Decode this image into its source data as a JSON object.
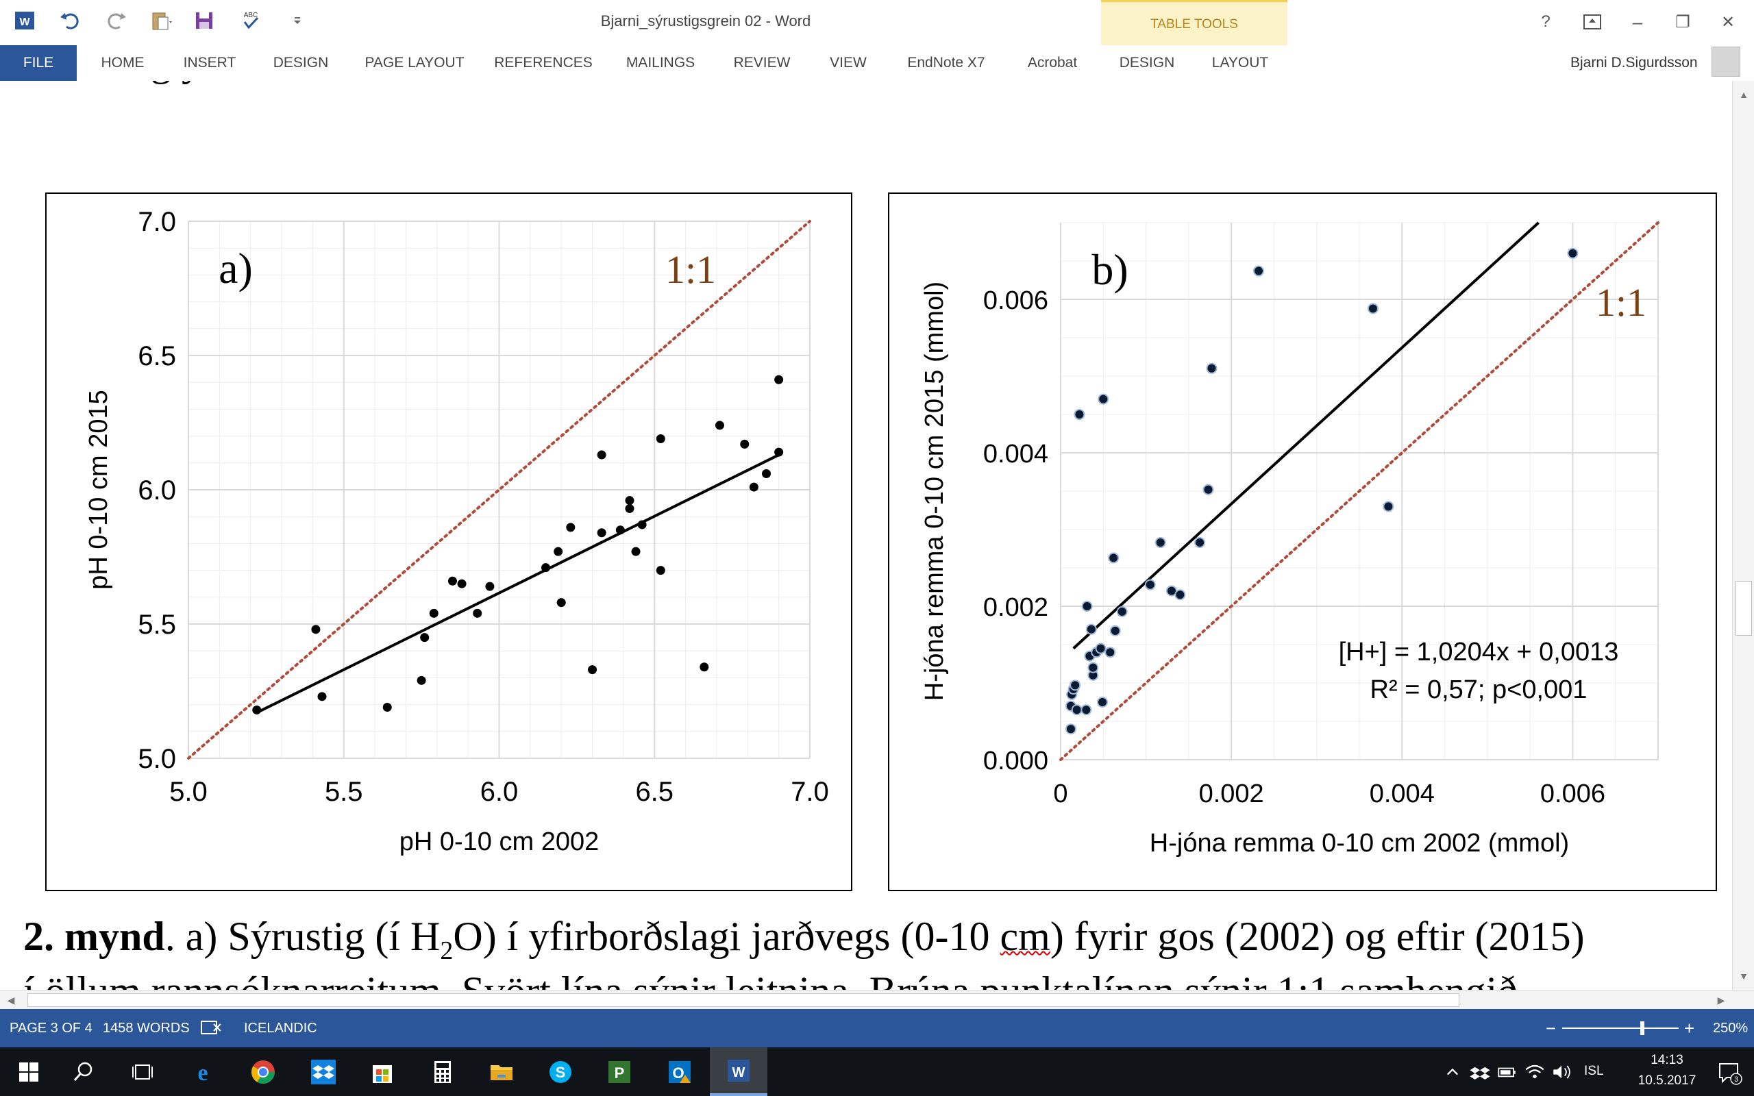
{
  "window": {
    "title": "Bjarni_sýrustigsgrein 02 - Word",
    "help": "?",
    "minimize": "–",
    "restore": "❐",
    "close": "✕"
  },
  "quick_access": {
    "spelling_label": "ABC"
  },
  "ribbon": {
    "file": "FILE",
    "tabs": [
      "HOME",
      "INSERT",
      "DESIGN",
      "PAGE LAYOUT",
      "REFERENCES",
      "MAILINGS",
      "REVIEW",
      "VIEW",
      "EndNote X7",
      "Acrobat"
    ],
    "table_tools_label": "TABLE TOOLS",
    "table_tabs": [
      "DESIGN",
      "LAYOUT"
    ],
    "user": "Bjarni D.Sigurdsson"
  },
  "document": {
    "previous_text_fragment": "g y",
    "caption_line1_bold": "2. mynd",
    "caption_line1_a": ". a) Sýrustig (í H",
    "caption_line1_sub": "2",
    "caption_line1_b": "O) í yfirborðslagi jarðvegs (0-10 ",
    "caption_line1_cm": "cm",
    "caption_line1_c": ") fyrir gos (2002) og eftir  (2015)",
    "caption_line2": "í öllum rannsóknarreitum. Svört lína sýnir leitnina. Brúna punktalínan sýnir 1:1 samhengið"
  },
  "chart_data": [
    {
      "type": "scatter",
      "panel_label": "a)",
      "ratio_label": "1:1",
      "xlabel": "pH 0-10 cm 2002",
      "ylabel": "pH 0-10 cm 2015",
      "xlim": [
        5.0,
        7.0
      ],
      "ylim": [
        5.0,
        7.0
      ],
      "xticks": [
        "5.0",
        "5.5",
        "6.0",
        "6.5",
        "7.0"
      ],
      "yticks": [
        "5.0",
        "5.5",
        "6.0",
        "6.5",
        "7.0"
      ],
      "x": [
        5.22,
        5.41,
        5.43,
        5.64,
        5.75,
        5.76,
        5.79,
        5.85,
        5.88,
        5.93,
        5.97,
        6.15,
        6.19,
        6.2,
        6.23,
        6.3,
        6.33,
        6.33,
        6.39,
        6.42,
        6.42,
        6.44,
        6.46,
        6.52,
        6.52,
        6.66,
        6.71,
        6.79,
        6.82,
        6.86,
        6.9,
        6.9
      ],
      "y": [
        5.18,
        5.48,
        5.23,
        5.19,
        5.29,
        5.45,
        5.54,
        5.66,
        5.65,
        5.54,
        5.64,
        5.71,
        5.77,
        5.58,
        5.86,
        5.33,
        5.84,
        6.13,
        5.85,
        5.93,
        5.96,
        5.77,
        5.87,
        5.7,
        6.19,
        5.34,
        6.24,
        6.17,
        6.01,
        6.06,
        6.14,
        6.41
      ],
      "trend": {
        "x": [
          5.22,
          6.9
        ],
        "y": [
          5.17,
          6.13
        ]
      },
      "reference_line": {
        "x": [
          5.0,
          7.0
        ],
        "y": [
          5.0,
          7.0
        ]
      },
      "colors": {
        "points": "#000000",
        "trend": "#000000",
        "ref": "#b04a3a",
        "ratio_label": "#7a3f12",
        "grid": "#d9d9d9"
      }
    },
    {
      "type": "scatter",
      "panel_label": "b)",
      "ratio_label": "1:1",
      "xlabel": "H-jóna remma 0-10 cm 2002 (mmol)",
      "ylabel": "H-jóna remma  0-10 cm 2015 (mmol)",
      "xlim": [
        0,
        0.007
      ],
      "ylim": [
        0,
        0.007
      ],
      "xticks": [
        "0",
        "0.002",
        "0.004",
        "0.006"
      ],
      "yticks": [
        "0.000",
        "0.002",
        "0.004",
        "0.006"
      ],
      "equation": "[H+] = 1,0204x + 0,0013",
      "stats": "R² = 0,57; p<0,001",
      "x": [
        0.00012,
        0.00012,
        0.00013,
        0.00015,
        0.00017,
        0.00019,
        0.00022,
        0.0003,
        0.00031,
        0.00034,
        0.00036,
        0.00038,
        0.00038,
        0.00042,
        0.00047,
        0.00049,
        0.0005,
        0.00058,
        0.00062,
        0.00064,
        0.00072,
        0.00105,
        0.00117,
        0.0013,
        0.0014,
        0.00163,
        0.00173,
        0.00177,
        0.00232,
        0.00366,
        0.00384,
        0.006
      ],
      "y": [
        0.0004,
        0.0007,
        0.00085,
        0.00092,
        0.00097,
        0.00065,
        0.0045,
        0.00065,
        0.002,
        0.00135,
        0.0017,
        0.0011,
        0.0012,
        0.0014,
        0.00145,
        0.00075,
        0.0047,
        0.0014,
        0.00263,
        0.00168,
        0.00193,
        0.00228,
        0.00283,
        0.0022,
        0.00215,
        0.00283,
        0.00352,
        0.0051,
        0.00637,
        0.00588,
        0.0033,
        0.0066
      ],
      "trend": {
        "x": [
          0.00015,
          0.0056
        ],
        "y": [
          0.00145,
          0.007
        ]
      },
      "reference_line": {
        "x": [
          0,
          0.007
        ],
        "y": [
          0,
          0.007
        ]
      },
      "colors": {
        "points": "#0b1a33",
        "trend": "#000000",
        "ref": "#b04a3a",
        "ratio_label": "#7a3f12",
        "grid": "#d9d9d9"
      }
    }
  ],
  "statusbar": {
    "page": "PAGE 3 OF 4",
    "words": "1458 WORDS",
    "language": "ICELANDIC",
    "zoom_minus": "−",
    "zoom_plus": "+",
    "zoom": "250%"
  },
  "taskbar": {
    "language": "ISL",
    "time": "14:13",
    "date": "10.5.2017",
    "notifications": "3"
  }
}
